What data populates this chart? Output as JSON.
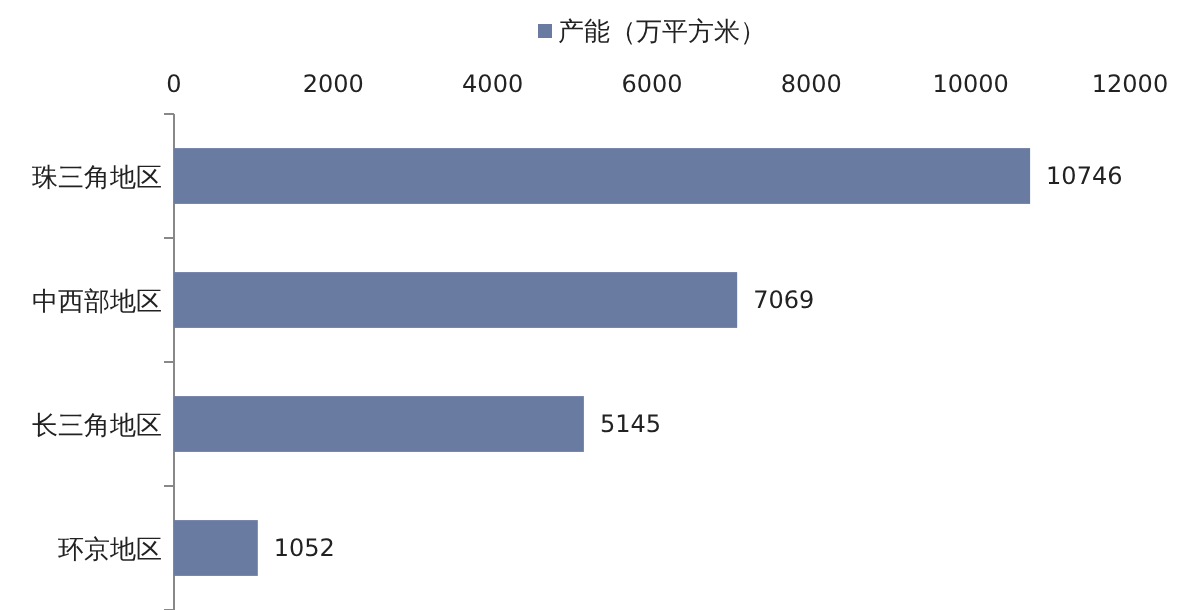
{
  "chart_data": {
    "type": "bar",
    "orientation": "horizontal",
    "categories": [
      "珠三角地区",
      "中西部地区",
      "长三角地区",
      "环京地区"
    ],
    "series": [
      {
        "name": "产能（万平方米）",
        "color": "#6a7ba2",
        "values": [
          10746,
          7069,
          5145,
          1052
        ]
      }
    ],
    "xlim": [
      0,
      12000
    ],
    "xticks": [
      0,
      2000,
      4000,
      6000,
      8000,
      10000,
      12000
    ],
    "data_labels": true,
    "legend": "top"
  }
}
